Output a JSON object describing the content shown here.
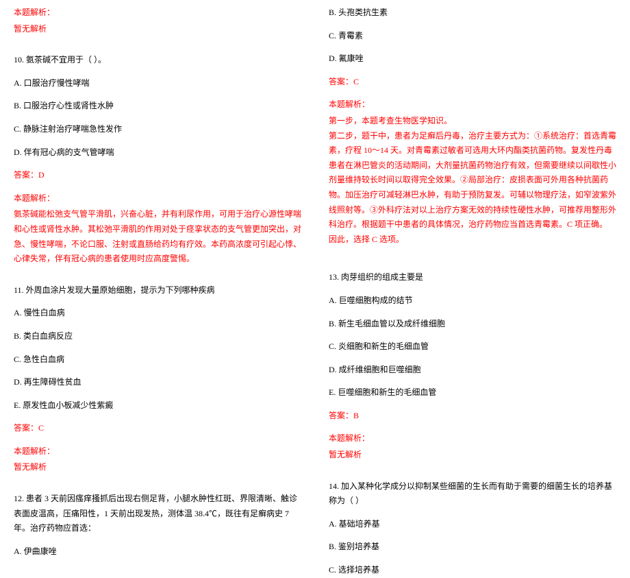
{
  "left": {
    "analysis_header": "本题解析：",
    "no_analysis": "暂无解析",
    "q10": {
      "stem": "10. 氨茶碱不宜用于（ ）。",
      "a": "A. 口服治疗慢性哮喘",
      "b": "B. 口服治疗心性或肾性水肿",
      "c": "C. 静脉注射治疗哮喘急性发作",
      "d": "D. 伴有冠心病的支气管哮喘",
      "answer": "答案：D",
      "analysis_h": "本题解析：",
      "analysis": "氨茶碱能松弛支气管平滑肌，兴奋心脏，并有利尿作用，可用于治疗心源性哮喘和心性或肾性水肿。其松弛平滑肌的作用对处于痉挛状态的支气管更加突出，对急、慢性哮喘，不论口服、注射或直肠给药均有疗效。本药高浓度可引起心悸、心律失常，伴有冠心病的患者使用时应高度警惕。"
    },
    "q11": {
      "stem": "11. 外周血涂片发现大量原始细胞，提示为下列哪种疾病",
      "a": "A. 慢性白血病",
      "b": "B. 类白血病反应",
      "c": "C. 急性白血病",
      "d": "D. 再生障碍性贫血",
      "e": "E. 原发性血小板减少性紫癜",
      "answer": "答案：C",
      "analysis_h": "本题解析：",
      "analysis": "暂无解析"
    },
    "q12": {
      "stem": "12. 患者 3 天前因瘙痒搔抓后出现右侧足背，小腿水肿性红斑、界限清晰、触诊表面皮温高，压痛阳性，1 天前出现发热，测体温 38.4℃，既往有足癣病史 7 年。治疗药物应首选：",
      "a": "A. 伊曲康唑"
    }
  },
  "right": {
    "q12_cont": {
      "b": "B. 头孢类抗生素",
      "c": "C. 青霉素",
      "d": "D. 氟康唑",
      "answer": "答案：C",
      "analysis_h": "本题解析：",
      "analysis": "第一步，本题考查生物医学知识。\n第二步，题干中，患者为足癣后丹毒，治疗主要方式为：①系统治疗：首选青霉素，疗程 10～14 天。对青霉素过敏者可选用大环内酯类抗菌药物。复发性丹毒患者在淋巴管炎的活动期间，大剂量抗菌药物治疗有效，但需要继续以间歇性小剂量维持较长时间以取得完全效果。②局部治疗：皮损表面可外用各种抗菌药物。加压治疗可减轻淋巴水肿，有助于预防复发。可辅以物理疗法，如窄波紫外线照射等。③外科疗法对以上治疗方案无效的持续性硬性水肿，可推荐用整形外科治疗。根据题干中患者的具体情况，治疗药物应当首选青霉素。C 项正确。\n因此，选择 C 选项。"
    },
    "q13": {
      "stem": "13. 肉芽组织的组成主要是",
      "a": "A. 巨噬细胞构成的结节",
      "b": "B. 新生毛细血管以及成纤维细胞",
      "c": "C. 炎细胞和新生的毛细血管",
      "d": "D. 成纤维细胞和巨噬细胞",
      "e": "E. 巨噬细胞和新生的毛细血管",
      "answer": "答案：B",
      "analysis_h": "本题解析：",
      "analysis": "暂无解析"
    },
    "q14": {
      "stem": "14. 加入某种化学成分以抑制某些细菌的生长而有助于需要的细菌生长的培养基称为（ ）",
      "a": "A. 基础培养基",
      "b": "B. 鉴别培养基",
      "c": "C. 选择培养基"
    }
  }
}
